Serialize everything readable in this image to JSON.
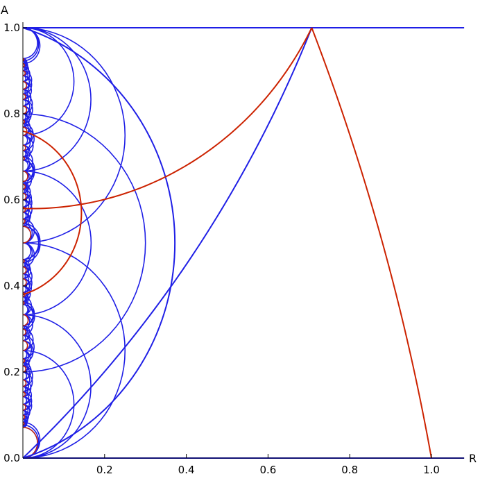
{
  "chart_data": {
    "type": "line",
    "title": "",
    "xlabel": "R",
    "ylabel": "A",
    "xlim": [
      0,
      1.08
    ],
    "ylim": [
      0,
      1.0
    ],
    "x_ticks": [
      "0.2",
      "0.4",
      "0.6",
      "0.8",
      "1.0"
    ],
    "y_ticks": [
      "0.0",
      "0.2",
      "0.4",
      "0.6",
      "0.8",
      "1.0"
    ],
    "grid": false,
    "legend": "none",
    "colors": {
      "blue": "#1f1fe6",
      "red": "#cc2200"
    },
    "series": [
      {
        "color": "blue",
        "kind": "horizontal_lines",
        "y_values": [
          0.0,
          1.0
        ]
      },
      {
        "color": "blue",
        "kind": "arc",
        "points": [
          [
            0.0,
            1.0
          ],
          [
            0.35,
            0.65
          ],
          [
            0.0,
            0.0
          ]
        ]
      },
      {
        "color": "blue",
        "kind": "arc",
        "points": [
          [
            0.707,
            1.0
          ],
          [
            0.4,
            0.45
          ],
          [
            0.0,
            0.0
          ]
        ]
      },
      {
        "color": "red",
        "kind": "curve",
        "points": [
          [
            0.707,
            1.0
          ],
          [
            0.85,
            0.6
          ],
          [
            1.0,
            0.0
          ]
        ]
      },
      {
        "color": "red",
        "kind": "curve",
        "points": [
          [
            0.707,
            1.0
          ],
          [
            0.4,
            0.68
          ],
          [
            0.0,
            0.58
          ]
        ]
      },
      {
        "color": "red",
        "kind": "curve",
        "points": [
          [
            0.0,
            0.76
          ],
          [
            0.141,
            0.6
          ],
          [
            0.0,
            0.38
          ]
        ]
      }
    ]
  }
}
